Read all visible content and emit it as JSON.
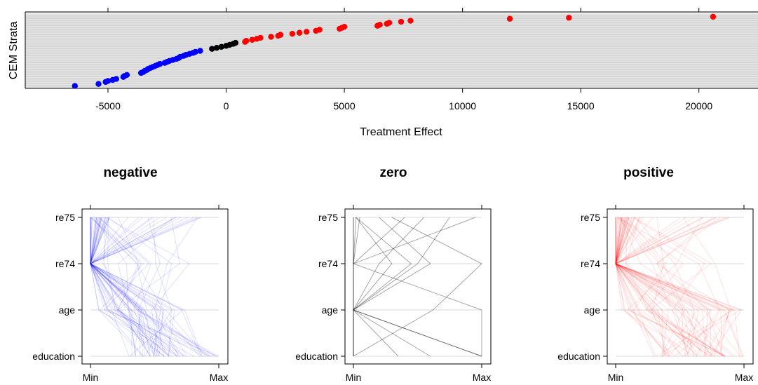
{
  "chart_data": [
    {
      "type": "scatter",
      "xlabel": "Treatment Effect",
      "ylabel": "CEM Strata",
      "xlim": [
        -8500,
        22500
      ],
      "x_ticks": [
        "-5000",
        "0",
        "5000",
        "10000",
        "15000",
        "20000"
      ],
      "x_tick_values": [
        -5000,
        0,
        5000,
        10000,
        15000,
        20000
      ],
      "grid": true,
      "colors": {
        "negative": "#0000ff",
        "zero": "#000000",
        "positive": "#ff0000"
      },
      "series": [
        {
          "values_x": [
            -6400,
            -5400,
            -5100,
            -5000,
            -4800,
            -4650,
            -4350,
            -4300,
            -4200,
            -3600,
            -3500,
            -3450,
            -3350,
            -3300,
            -3200,
            -3100,
            -3000,
            -2900,
            -2800,
            -2600,
            -2500,
            -2400,
            -2250,
            -2100,
            -2000,
            -1950,
            -1800,
            -1700,
            -1550,
            -1400,
            -1300,
            -1100
          ],
          "values_y": [
            1,
            3,
            5,
            6,
            7,
            8,
            10,
            11,
            12,
            14,
            15,
            16,
            17,
            18,
            19,
            20,
            21,
            22,
            23,
            24,
            25,
            26,
            27,
            28,
            29,
            30,
            31,
            32,
            33,
            34,
            35,
            36
          ]
        },
        {
          "values_x": [
            -600,
            -400,
            -200,
            0,
            150,
            300,
            400
          ],
          "values_y": [
            38,
            39,
            40,
            41,
            42,
            43,
            44
          ]
        },
        {
          "values_x": [
            800,
            850,
            1100,
            1300,
            1450,
            1900,
            2200,
            2300,
            2800,
            3100,
            3400,
            3800,
            3950,
            4800,
            4900,
            5000,
            6400,
            6500,
            6800,
            6900,
            7400,
            7800,
            12000,
            14500,
            20600
          ],
          "values_y": [
            45,
            46,
            47,
            48,
            49,
            50,
            51,
            52,
            53,
            54,
            55,
            56,
            57,
            58,
            59,
            60,
            61,
            62,
            63,
            64,
            65,
            66,
            68,
            69,
            70
          ]
        }
      ]
    },
    {
      "type": "line",
      "title": "negative",
      "x_ticks": [
        "Min",
        "Max"
      ],
      "y_ticks": [
        "re75",
        "re74",
        "age",
        "education"
      ],
      "color": "#0000ff"
    },
    {
      "type": "line",
      "title": "zero",
      "x_ticks": [
        "Min",
        "Max"
      ],
      "y_ticks": [
        "re75",
        "re74",
        "age",
        "education"
      ],
      "color": "#000000",
      "lines": [
        [
          0.02,
          0.0,
          0.0,
          0.0
        ],
        [
          0.02,
          0.3,
          0.0,
          0.0
        ],
        [
          0.05,
          0.0,
          0.0,
          0.0
        ],
        [
          0.2,
          0.6,
          0.0,
          0.35
        ],
        [
          0.4,
          0.0,
          0.0,
          1.0
        ],
        [
          0.55,
          0.2,
          0.0,
          0.6
        ],
        [
          0.75,
          0.5,
          0.0,
          0.0
        ],
        [
          0.95,
          0.0,
          1.0,
          1.0
        ],
        [
          0.3,
          1.0,
          0.62,
          0.0
        ],
        [
          0.02,
          0.45,
          0.0,
          1.0
        ]
      ]
    },
    {
      "type": "line",
      "title": "positive",
      "x_ticks": [
        "Min",
        "Max"
      ],
      "y_ticks": [
        "re75",
        "re74",
        "age",
        "education"
      ],
      "color": "#ff0000"
    }
  ]
}
